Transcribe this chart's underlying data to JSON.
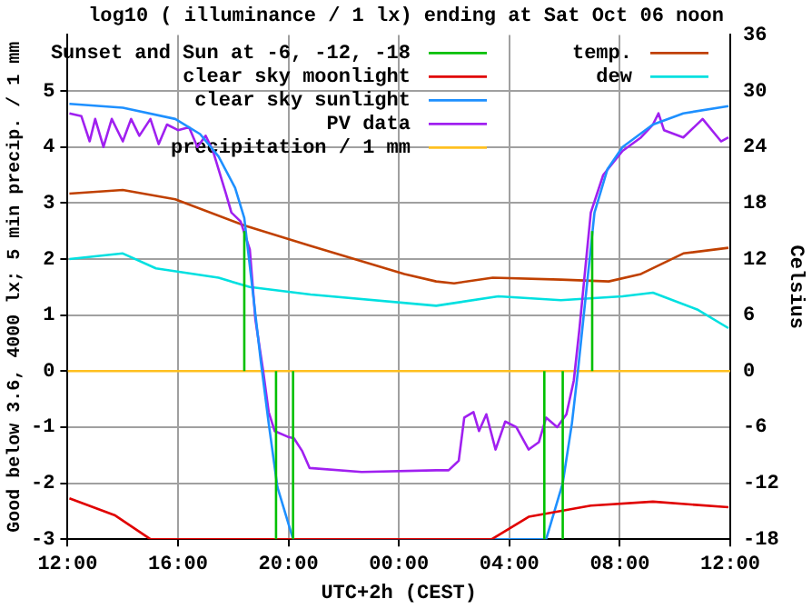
{
  "chart_data": {
    "type": "line",
    "title": "log10 ( illuminance / 1 lx) ending at Sat Oct 06 noon",
    "xlabel": "UTC+2h (CEST)",
    "ylabel": "Good below 3.6, 4000 lx; 5 min precip. / 1 mm",
    "y2label": "Celsius",
    "xlim": [
      "--10-05T12:00",
      "--10-06T12:00"
    ],
    "xticks": [
      {
        "value": "--10-05T12:00",
        "label": "12:00"
      },
      {
        "value": "--10-05T16:00",
        "label": "16:00"
      },
      {
        "value": "--10-05T20:00",
        "label": "20:00"
      },
      {
        "value": "--10-06T00:00",
        "label": "00:00"
      },
      {
        "value": "--10-06T04:00",
        "label": "04:00"
      },
      {
        "value": "--10-06T08:00",
        "label": "08:00"
      },
      {
        "value": "--10-06T12:00",
        "label": "12:00"
      }
    ],
    "ylim": [
      -3,
      6
    ],
    "yticks": [
      -3,
      -2,
      -1,
      0,
      1,
      2,
      3,
      4,
      5
    ],
    "y2lim": [
      -18,
      36
    ],
    "y2ticks": [
      -18,
      -12,
      -6,
      0,
      6,
      12,
      18,
      24,
      30,
      36
    ],
    "grid": true,
    "legend": "top right",
    "marker": "none",
    "line_style": "solid",
    "series": [
      {
        "name": "Sunset and Sun at -6, -12, -18",
        "color": "#00c000",
        "x": [
          "--10-05T18:24",
          "--10-05T18:24",
          null,
          "--10-05T19:33",
          "--10-05T19:33",
          null,
          "--10-05T20:10",
          "--10-05T20:10",
          null,
          "--10-06T05:16",
          "--10-06T05:16",
          null,
          "--10-06T05:56",
          "--10-06T05:56",
          null,
          "--10-06T07:00",
          "--10-06T07:00"
        ],
        "values": [
          0,
          2.5,
          null,
          -3,
          0,
          null,
          -3,
          0,
          null,
          -3,
          0,
          null,
          -3,
          0,
          null,
          0,
          2.5
        ]
      },
      {
        "name": "clear sky moonlight",
        "color": "#e00000",
        "x": [
          "--10-05T12:04",
          "--10-05T13:42",
          "--10-05T15:00",
          "--10-06T03:22",
          "--10-06T04:42",
          "--10-06T06:57",
          "--10-06T09:12",
          "--10-06T11:56"
        ],
        "values": [
          -2.27,
          -2.57,
          -3,
          -3,
          -2.6,
          -2.4,
          -2.33,
          -2.43
        ]
      },
      {
        "name": "clear sky sunlight",
        "color": "#1e90ff",
        "x": [
          "--10-05T12:04",
          "--10-05T14:00",
          "--10-05T15:54",
          "--10-05T16:48",
          "--10-05T17:28",
          "--10-05T18:04",
          "--10-05T18:24",
          "--10-05T19:00",
          "--10-05T19:17",
          "--10-05T19:36",
          "--10-05T20:10",
          "--10-06T05:20",
          "--10-06T05:56",
          "--10-06T06:16",
          "--10-06T06:29",
          "--10-06T07:05",
          "--10-06T07:33",
          "--10-06T08:06",
          "--10-06T09:12",
          "--10-06T10:18",
          "--10-06T11:56"
        ],
        "values": [
          4.77,
          4.7,
          4.5,
          4.23,
          3.83,
          3.27,
          2.73,
          0.17,
          -0.93,
          -2.07,
          -3,
          -3,
          -2,
          -0.93,
          0,
          2.83,
          3.6,
          4.0,
          4.4,
          4.6,
          4.73
        ]
      },
      {
        "name": "PV data",
        "color": "#a020f0",
        "x": [
          "--10-05T12:04",
          "--10-05T12:30",
          "--10-05T12:48",
          "--10-05T13:00",
          "--10-05T13:18",
          "--10-05T13:36",
          "--10-05T14:00",
          "--10-05T14:18",
          "--10-05T14:36",
          "--10-05T15:00",
          "--10-05T15:18",
          "--10-05T15:36",
          "--10-05T16:00",
          "--10-05T16:24",
          "--10-05T16:42",
          "--10-05T17:00",
          "--10-05T17:16",
          "--10-05T17:44",
          "--10-05T17:56",
          "--10-05T18:16",
          "--10-05T18:36",
          "--10-05T18:48",
          "--10-05T19:05",
          "--10-05T19:17",
          "--10-05T19:30",
          "--10-05T19:58",
          "--10-05T20:12",
          "--10-05T20:30",
          "--10-05T20:46",
          "--10-05T22:39",
          "--10-06T01:21",
          "--10-06T01:48",
          "--10-06T02:10",
          "--10-06T02:22",
          "--10-06T02:42",
          "--10-06T02:54",
          "--10-06T03:10",
          "--10-06T03:30",
          "--10-06T03:51",
          "--10-06T04:15",
          "--10-06T04:42",
          "--10-06T05:04",
          "--10-06T05:20",
          "--10-06T05:44",
          "--10-06T06:04",
          "--10-06T06:20",
          "--10-06T06:32",
          "--10-06T06:45",
          "--10-06T06:57",
          "--10-06T07:24",
          "--10-06T08:06",
          "--10-06T08:46",
          "--10-06T09:12",
          "--10-06T09:24",
          "--10-06T09:36",
          "--10-06T10:18",
          "--10-06T11:00",
          "--10-06T11:40",
          "--10-06T11:56"
        ],
        "values": [
          4.6,
          4.55,
          4.1,
          4.5,
          4.0,
          4.5,
          4.1,
          4.5,
          4.2,
          4.5,
          4.05,
          4.4,
          4.3,
          4.35,
          4.0,
          4.2,
          3.93,
          3.17,
          2.83,
          2.67,
          2.17,
          0.93,
          0,
          -0.73,
          -1.07,
          -1.17,
          -1.2,
          -1.43,
          -1.73,
          -1.8,
          -1.77,
          -1.77,
          -1.6,
          -0.83,
          -0.73,
          -1.07,
          -0.77,
          -1.4,
          -0.9,
          -1.0,
          -1.4,
          -1.27,
          -0.83,
          -1.0,
          -0.77,
          -0.17,
          0.73,
          1.83,
          2.83,
          3.5,
          3.93,
          4.17,
          4.4,
          4.6,
          4.3,
          4.17,
          4.5,
          4.1,
          4.17
        ]
      },
      {
        "name": "precipitation / 1 mm",
        "color": "#ffc020",
        "x": [
          "--10-05T12:00",
          "--10-06T12:00"
        ],
        "values": [
          0,
          0
        ]
      },
      {
        "name": "temp.",
        "color": "#c04000",
        "axis": "y2",
        "x": [
          "--10-05T12:04",
          "--10-05T14:00",
          "--10-05T15:54",
          "--10-05T18:24",
          "--10-05T20:48",
          "--10-06T00:12",
          "--10-06T01:21",
          "--10-06T02:00",
          "--10-06T03:24",
          "--10-06T05:52",
          "--10-06T07:36",
          "--10-06T08:46",
          "--10-06T10:18",
          "--10-06T11:56"
        ],
        "values": [
          19,
          19.4,
          18.4,
          15.6,
          13.4,
          10.4,
          9.6,
          9.4,
          10.0,
          9.8,
          9.6,
          10.4,
          12.6,
          13.2
        ]
      },
      {
        "name": "dew",
        "color": "#00e0e0",
        "axis": "y2",
        "x": [
          "--10-05T12:04",
          "--10-05T14:00",
          "--10-05T15:12",
          "--10-05T17:28",
          "--10-05T18:36",
          "--10-05T20:48",
          "--10-06T01:21",
          "--10-06T03:36",
          "--10-06T05:52",
          "--10-06T08:06",
          "--10-06T09:12",
          "--10-06T10:48",
          "--10-06T11:56"
        ],
        "values": [
          12,
          12.6,
          11,
          10,
          9,
          8.2,
          7.0,
          8.0,
          7.6,
          8.0,
          8.4,
          6.6,
          4.6
        ]
      }
    ]
  }
}
